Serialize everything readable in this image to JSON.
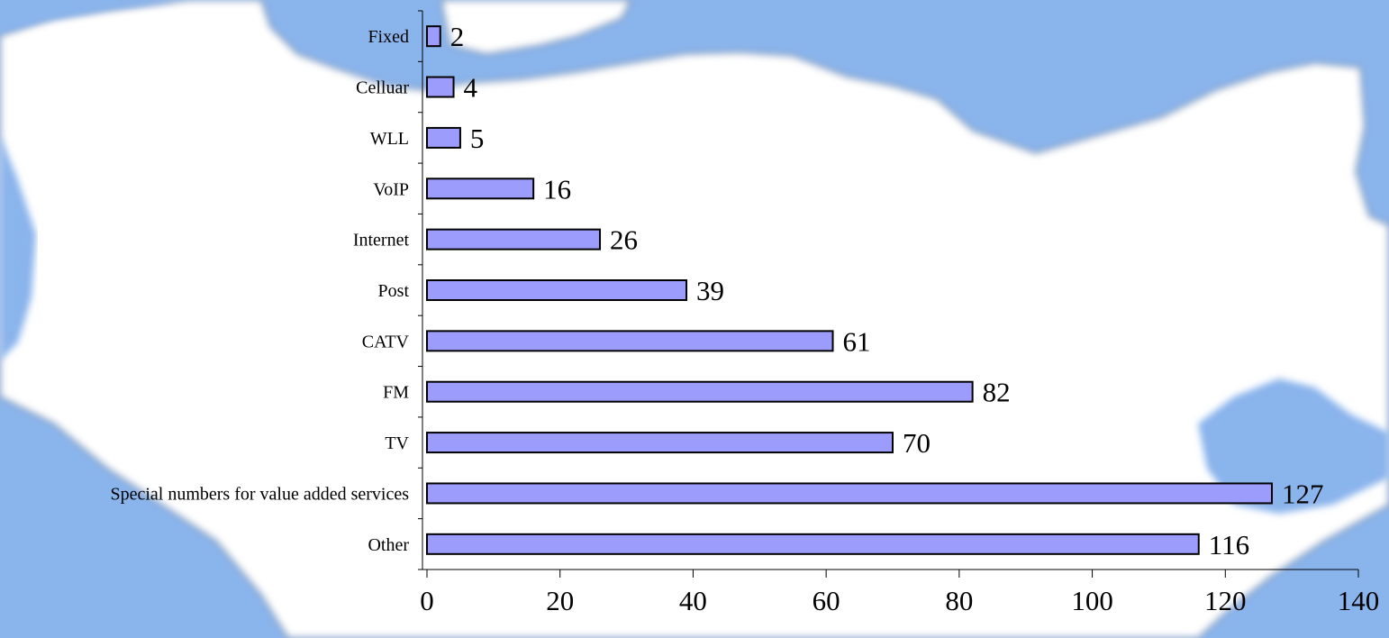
{
  "chart_data": {
    "type": "bar",
    "orientation": "horizontal",
    "title": "",
    "xlabel": "",
    "ylabel": "",
    "categories": [
      "Fixed",
      "Celluar",
      "WLL",
      "VoIP",
      "Internet",
      "Post",
      "CATV",
      "FM",
      "TV",
      "Special numbers for value added services",
      "Other"
    ],
    "values": [
      2,
      4,
      5,
      16,
      26,
      39,
      61,
      82,
      70,
      127,
      116
    ],
    "data_labels": [
      "2",
      "4",
      "5",
      "16",
      "26",
      "39",
      "61",
      "82",
      "70",
      "127",
      "116"
    ],
    "xlim": [
      0,
      140
    ],
    "xticks": [
      0,
      20,
      40,
      60,
      80,
      100,
      120,
      140
    ],
    "xtick_labels": [
      "0",
      "20",
      "40",
      "60",
      "80",
      "100",
      "120",
      "140"
    ],
    "grid": false,
    "legend": "none",
    "colors": {
      "bar_fill": "#9c9cfc",
      "bar_stroke": "#000000",
      "background_sea": "#8ab4ec",
      "background_land": "#ffffff"
    }
  }
}
